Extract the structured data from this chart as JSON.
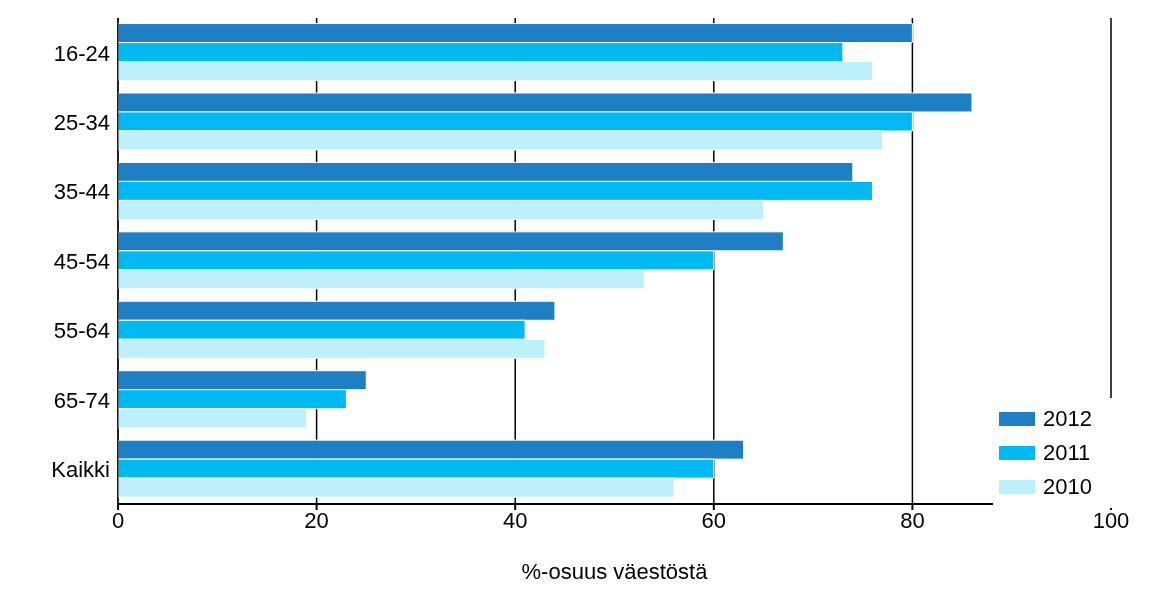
{
  "chart_data": {
    "type": "bar",
    "orientation": "horizontal",
    "xlabel": "%-osuus väestöstä",
    "categories": [
      "16-24",
      "25-34",
      "35-44",
      "45-54",
      "55-64",
      "65-74",
      "Kaikki"
    ],
    "series": [
      {
        "name": "2012",
        "color": "#1f7fc4",
        "values": [
          80,
          86,
          74,
          67,
          44,
          25,
          63
        ]
      },
      {
        "name": "2011",
        "color": "#00b9f0",
        "values": [
          73,
          80,
          76,
          60,
          41,
          23,
          60
        ]
      },
      {
        "name": "2010",
        "color": "#bdf0fb",
        "values": [
          76,
          77,
          65,
          53,
          43,
          19,
          56
        ]
      }
    ],
    "xlim": [
      0,
      100
    ],
    "xticks": [
      0,
      20,
      40,
      60,
      80,
      100
    ],
    "grid": "x",
    "legend": "bottom right"
  }
}
